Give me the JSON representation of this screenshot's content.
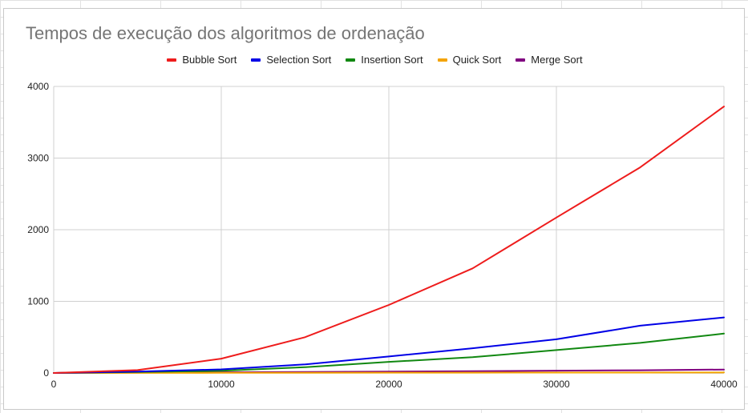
{
  "chart_data": {
    "type": "line",
    "title": "Tempos de execução dos algoritmos de ordenação",
    "xlabel": "",
    "ylabel": "",
    "x": [
      0,
      5000,
      10000,
      15000,
      20000,
      25000,
      30000,
      35000,
      40000
    ],
    "xlim": [
      0,
      40000
    ],
    "ylim": [
      0,
      4000
    ],
    "xticks": [
      "0",
      "10000",
      "20000",
      "30000",
      "40000"
    ],
    "yticks": [
      "0",
      "1000",
      "2000",
      "3000",
      "4000"
    ],
    "grid": true,
    "legend_position": "top",
    "series": [
      {
        "name": "Bubble Sort",
        "color": "#ee1c1c",
        "values": [
          0,
          40,
          200,
          500,
          950,
          1460,
          2170,
          2870,
          3720
        ]
      },
      {
        "name": "Selection Sort",
        "color": "#0000e6",
        "values": [
          0,
          20,
          50,
          120,
          230,
          345,
          470,
          660,
          775
        ]
      },
      {
        "name": "Insertion Sort",
        "color": "#118811",
        "values": [
          0,
          15,
          30,
          80,
          155,
          220,
          320,
          420,
          550
        ]
      },
      {
        "name": "Quick Sort",
        "color": "#f4a300",
        "values": [
          0,
          1,
          2,
          3,
          4,
          5,
          6,
          6,
          7
        ]
      },
      {
        "name": "Merge Sort",
        "color": "#800080",
        "values": [
          0,
          5,
          10,
          15,
          20,
          25,
          32,
          38,
          48
        ]
      }
    ]
  }
}
